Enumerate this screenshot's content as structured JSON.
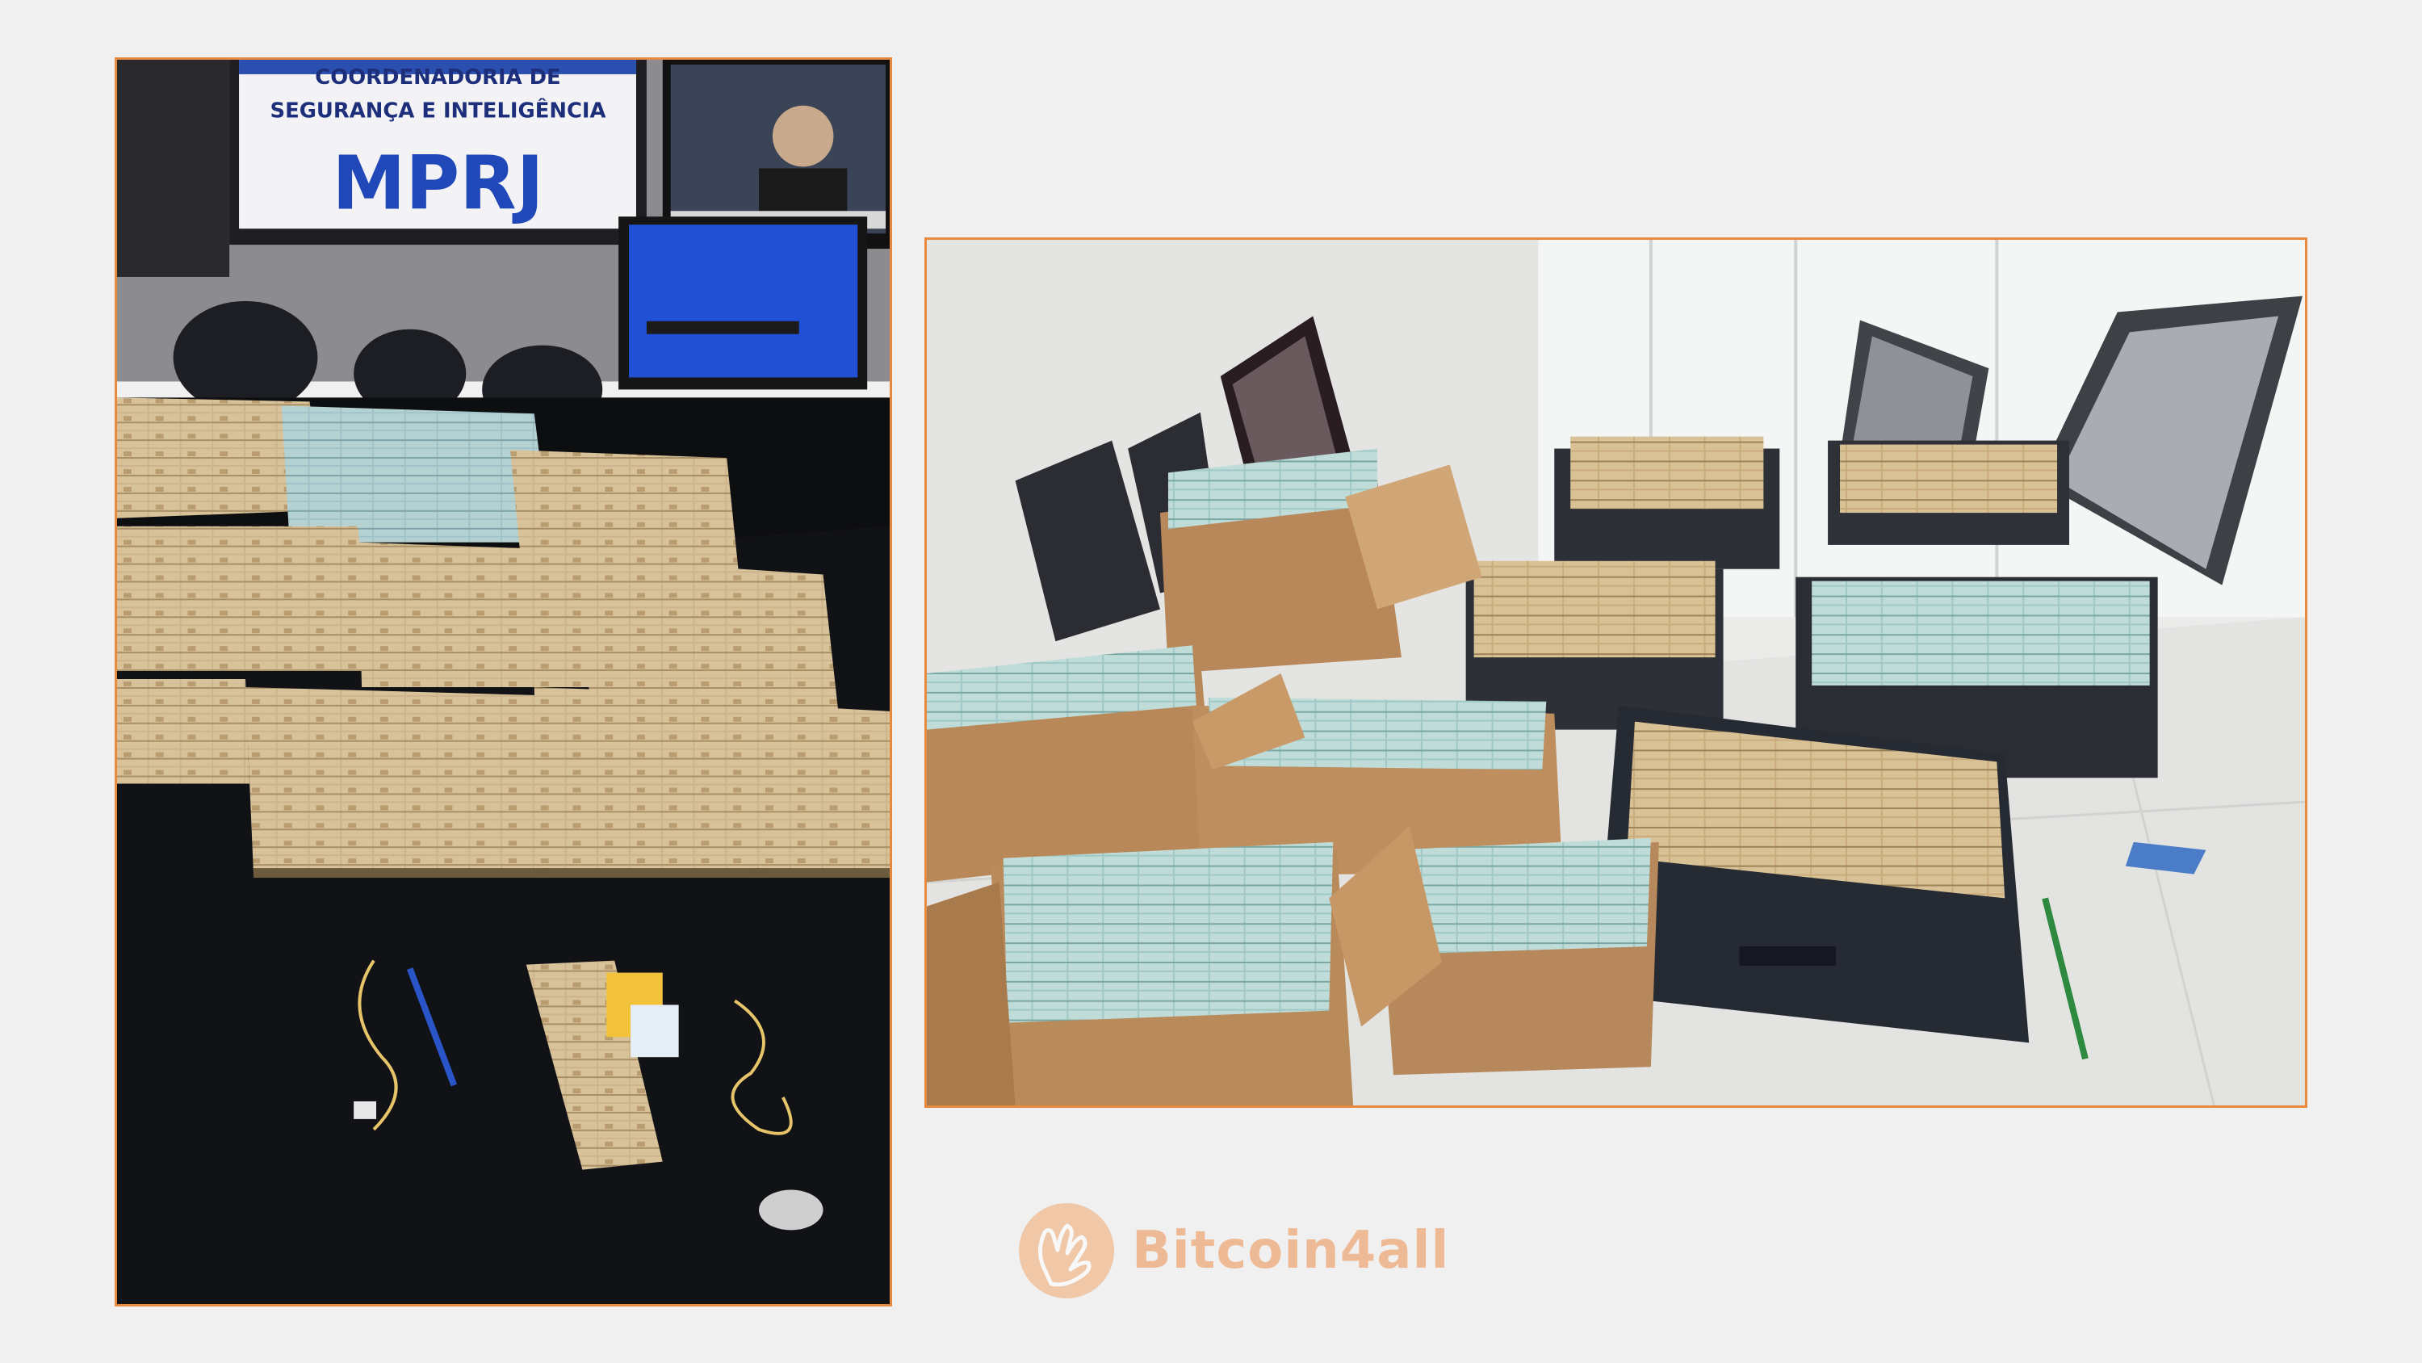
{
  "left_photo": {
    "screen_text_1": "COORDENADORIA DE",
    "screen_text_2": "SEGURANÇA E INTELIGÊNCIA",
    "screen_text_3": "MPRJ"
  },
  "brand": {
    "name": "Bitcoin4all",
    "icon": "hands-logo-icon"
  },
  "colors": {
    "background": "#f0f0f0",
    "frame": "#e8893e",
    "brand": "#ee8f4c"
  }
}
